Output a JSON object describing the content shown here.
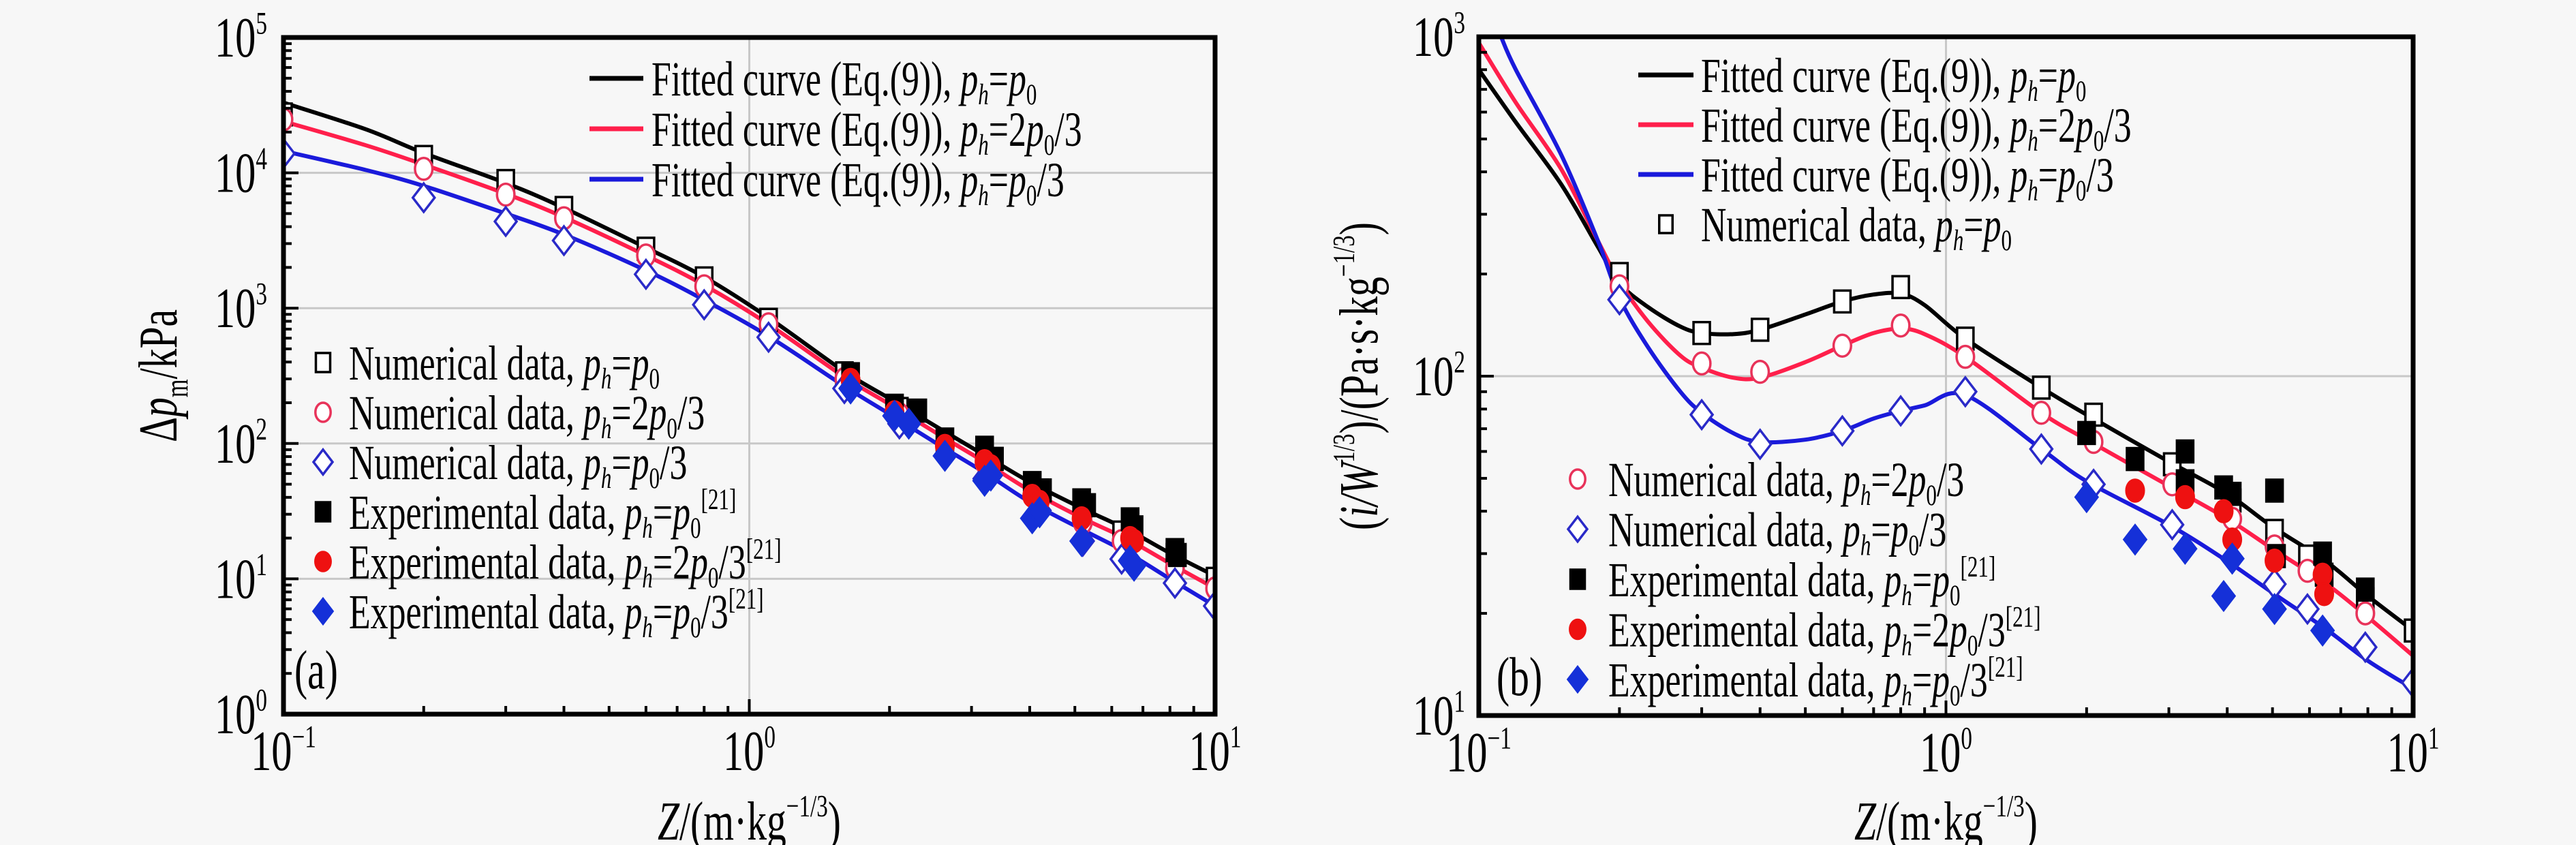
{
  "chart_data": [
    {
      "panel": "(a)",
      "type": "scatter",
      "title": "",
      "xlabel": "Z/(m·kg^-1/3)",
      "ylabel": "Δp_m/kPa",
      "xscale": "log",
      "yscale": "log",
      "xlim": [
        0.1,
        10
      ],
      "ylim": [
        1,
        100000
      ],
      "grid": true,
      "x_tick_labels": [
        {
          "base": "10",
          "exp": "−1"
        },
        {
          "base": "10",
          "exp": "0"
        },
        {
          "base": "10",
          "exp": "1"
        }
      ],
      "y_tick_labels": [
        {
          "base": "10",
          "exp": "0"
        },
        {
          "base": "10",
          "exp": "1"
        },
        {
          "base": "10",
          "exp": "2"
        },
        {
          "base": "10",
          "exp": "3"
        },
        {
          "base": "10",
          "exp": "4"
        },
        {
          "base": "10",
          "exp": "5"
        }
      ],
      "legend_placement": [
        "top-right",
        "center-left"
      ],
      "series": [
        {
          "name": "Fitted curve (Eq.(9)), p_h=p_0",
          "kind": "line",
          "color": "#000000",
          "x": [
            0.1,
            0.15,
            0.2,
            0.3,
            0.4,
            0.6,
            0.8,
            1.1,
            1.6,
            2.0,
            2.6,
            3.2,
            4.0,
            5.2,
            6.5,
            8.0,
            10
          ],
          "y": [
            33000,
            21000,
            14000,
            8400,
            5500,
            2800,
            1700,
            850,
            340,
            215,
            125,
            82,
            52,
            33,
            23,
            15.5,
            10.5
          ]
        },
        {
          "name": "Fitted curve (Eq.(9)), p_h=2p_0/3",
          "kind": "line",
          "color": "#ff1f4b",
          "x": [
            0.1,
            0.15,
            0.2,
            0.3,
            0.4,
            0.6,
            0.8,
            1.1,
            1.6,
            2.0,
            2.6,
            3.2,
            4.0,
            5.2,
            6.5,
            8.0,
            10
          ],
          "y": [
            24000,
            16000,
            11500,
            7000,
            4700,
            2450,
            1480,
            760,
            310,
            195,
            112,
            73,
            45,
            28,
            19.5,
            13,
            8.5
          ]
        },
        {
          "name": "Fitted curve (Eq.(9)), p_h=p_0/3",
          "kind": "line",
          "color": "#1a1adb",
          "x": [
            0.1,
            0.15,
            0.2,
            0.3,
            0.4,
            0.6,
            0.8,
            1.1,
            1.6,
            2.0,
            2.6,
            3.2,
            4.0,
            5.2,
            6.5,
            8.0,
            10
          ],
          "y": [
            14500,
            10500,
            8000,
            5000,
            3500,
            1900,
            1150,
            620,
            265,
            165,
            94,
            61,
            37,
            23,
            15.5,
            10,
            6.3
          ]
        },
        {
          "name": "Numerical data, p_h=p_0",
          "kind": "open-square",
          "color": "#000000",
          "x": [
            0.1,
            0.2,
            0.3,
            0.4,
            0.6,
            0.8,
            1.1,
            1.6,
            2.1,
            3.2,
            4.2,
            5.2,
            6.3,
            8.2,
            10
          ],
          "y": [
            27000,
            13100,
            8700,
            5500,
            2750,
            1660,
            820,
            330,
            180,
            80,
            45,
            30,
            22,
            15,
            10
          ]
        },
        {
          "name": "Numerical data, p_h=2p_0/3",
          "kind": "open-circle",
          "color": "#e8335a",
          "x": [
            0.1,
            0.2,
            0.3,
            0.4,
            0.6,
            0.8,
            1.1,
            1.6,
            2.1,
            3.2,
            4.2,
            5.2,
            6.3,
            8.2,
            10
          ],
          "y": [
            24800,
            10700,
            6900,
            4620,
            2450,
            1450,
            760,
            300,
            165,
            72,
            40,
            26,
            19,
            12,
            8.5
          ]
        },
        {
          "name": "Numerical data, p_h=p_0/3",
          "kind": "open-diamond",
          "color": "#2a2ac8",
          "x": [
            0.1,
            0.2,
            0.3,
            0.4,
            0.6,
            0.8,
            1.1,
            1.6,
            2.1,
            3.2,
            4.2,
            5.2,
            6.3,
            8.2,
            10
          ],
          "y": [
            13900,
            6550,
            4370,
            3160,
            1780,
            1060,
            610,
            255,
            140,
            55,
            32,
            19,
            14,
            9.3,
            6.3
          ]
        },
        {
          "name": "Experimental data, p_h=p_0^[21]",
          "kind": "filled-square",
          "color": "#000000",
          "x": [
            1.65,
            2.05,
            2.3,
            2.63,
            3.2,
            3.36,
            4.05,
            4.26,
            5.17,
            5.3,
            6.57,
            6.7,
            8.2,
            8.3
          ],
          "y": [
            325,
            190,
            175,
            107,
            93,
            77,
            51,
            45,
            38,
            35,
            27.5,
            24,
            16.3,
            15
          ]
        },
        {
          "name": "Experimental data, p_h=2p_0/3^[21]",
          "kind": "filled-circle",
          "color": "#ee1111",
          "x": [
            1.65,
            2.05,
            2.63,
            3.2,
            3.3,
            4.05,
            4.2,
            5.17,
            6.57,
            6.7
          ],
          "y": [
            295,
            170,
            96,
            74,
            68,
            41,
            37,
            28,
            20,
            19
          ]
        },
        {
          "name": "Experimental data, p_h=p_0/3^[21]",
          "kind": "filled-diamond",
          "color": "#1530d8",
          "x": [
            1.65,
            2.05,
            2.2,
            2.63,
            3.2,
            3.3,
            4.05,
            4.2,
            5.17,
            6.57,
            6.7
          ],
          "y": [
            255,
            160,
            140,
            81,
            53,
            58,
            28,
            31,
            19,
            13.6,
            12.5
          ]
        }
      ]
    },
    {
      "panel": "(b)",
      "type": "scatter",
      "title": "",
      "xlabel": "Z/(m·kg^-1/3)",
      "ylabel": "(i/W^1/3)/(Pa·s·kg^-1/3)",
      "xscale": "log",
      "yscale": "log",
      "xlim": [
        0.1,
        10
      ],
      "ylim": [
        10,
        1000
      ],
      "grid": true,
      "x_tick_labels": [
        {
          "base": "10",
          "exp": "−1"
        },
        {
          "base": "10",
          "exp": "0"
        },
        {
          "base": "10",
          "exp": "1"
        }
      ],
      "y_tick_labels": [
        {
          "base": "10",
          "exp": "1"
        },
        {
          "base": "10",
          "exp": "2"
        },
        {
          "base": "10",
          "exp": "3"
        }
      ],
      "legend_placement": [
        "top-right",
        "bottom-left"
      ],
      "series": [
        {
          "name": "Fitted curve (Eq.(9)), p_h=p_0",
          "kind": "line",
          "color": "#000000",
          "x": [
            0.1,
            0.12,
            0.15,
            0.18,
            0.2,
            0.23,
            0.27,
            0.3,
            0.35,
            0.4,
            0.5,
            0.6,
            0.7,
            0.8,
            0.9,
            1.1,
            1.6,
            2.0,
            3.0,
            4.0,
            5.0,
            6.5,
            8.0,
            10
          ],
          "y": [
            800,
            560,
            368,
            240,
            188,
            160,
            140,
            134,
            133,
            137,
            152,
            166,
            174,
            175,
            162,
            129,
            92.5,
            77,
            56,
            45,
            36,
            28.5,
            22.5,
            17.8
          ]
        },
        {
          "name": "Fitted curve (Eq.(9)), p_h=2p_0/3",
          "kind": "line",
          "color": "#ff1f4b",
          "x": [
            0.1,
            0.12,
            0.15,
            0.18,
            0.2,
            0.23,
            0.27,
            0.3,
            0.35,
            0.4,
            0.5,
            0.6,
            0.7,
            0.8,
            0.9,
            1.1,
            1.6,
            2.0,
            3.0,
            4.0,
            5.0,
            6.5,
            8.0,
            10
          ],
          "y": [
            960,
            640,
            408,
            250,
            190,
            145,
            115,
            106,
            99,
            99,
            110,
            123,
            134,
            138,
            133,
            114,
            78,
            65,
            47.5,
            38,
            31,
            24.5,
            19.5,
            15
          ]
        },
        {
          "name": "Fitted curve (Eq.(9)), p_h=p_0/3",
          "kind": "line",
          "color": "#1a1adb",
          "x": [
            0.1116,
            0.12,
            0.15,
            0.18,
            0.2,
            0.23,
            0.27,
            0.3,
            0.35,
            0.4,
            0.5,
            0.6,
            0.7,
            0.8,
            0.9,
            1.1,
            1.6,
            2.0,
            3.0,
            4.0,
            5.0,
            6.5,
            8.0,
            10
          ],
          "y": [
            1000,
            800,
            450,
            250,
            170,
            122,
            90,
            78,
            68,
            64,
            65,
            69,
            75,
            79,
            82,
            88,
            61,
            49,
            36.5,
            28.5,
            23,
            18,
            14.5,
            12
          ]
        },
        {
          "name": "Numerical data, p_h=p_0",
          "kind": "open-square",
          "color": "#000000",
          "x": [
            0.2,
            0.3,
            0.4,
            0.6,
            0.8,
            1.1,
            1.6,
            2.07,
            3.05,
            4.1,
            5.05,
            5.94,
            7.9,
            10
          ],
          "y": [
            200,
            134,
            137,
            166,
            183,
            129,
            92.5,
            77,
            55,
            43,
            35,
            29.4,
            22,
            17.8
          ]
        },
        {
          "name": "Numerical data, p_h=2p_0/3",
          "kind": "open-circle",
          "color": "#e8335a",
          "x": [
            0.2,
            0.3,
            0.4,
            0.6,
            0.8,
            1.1,
            1.6,
            2.07,
            3.05,
            4.1,
            5.05,
            5.94,
            7.9
          ],
          "y": [
            184,
            109,
            103,
            123,
            141,
            114,
            78,
            64,
            48,
            38,
            31.5,
            26.7,
            20
          ]
        },
        {
          "name": "Numerical data, p_h=p_0/3",
          "kind": "open-diamond",
          "color": "#2a2ac8",
          "x": [
            0.2,
            0.3,
            0.4,
            0.6,
            0.8,
            1.1,
            1.6,
            2.07,
            3.05,
            4.1,
            5.05,
            5.94,
            7.9,
            10
          ],
          "y": [
            168,
            77,
            63,
            69,
            79,
            90,
            61,
            48,
            36.5,
            29,
            24.4,
            20.6,
            15.9,
            12.5
          ]
        },
        {
          "name": "Experimental data, p_h=p_0^[21]",
          "kind": "filled-square",
          "color": "#000000",
          "x": [
            2.0,
            2.54,
            3.25,
            3.25,
            3.93,
            4.1,
            5.05,
            5.1,
            6.4,
            6.45,
            7.9
          ],
          "y": [
            68,
            57,
            60,
            49,
            47,
            45,
            46,
            29.5,
            30,
            26,
            23.5
          ]
        },
        {
          "name": "Experimental data, p_h=2p_0/3^[21]",
          "kind": "filled-circle",
          "color": "#ee1111",
          "x": [
            2.54,
            3.25,
            3.93,
            4.1,
            5.05,
            6.4,
            6.45
          ],
          "y": [
            46,
            44,
            40,
            33,
            28.6,
            26,
            22.8
          ]
        },
        {
          "name": "Experimental data, p_h=p_0/3^[21]",
          "kind": "filled-diamond",
          "color": "#1530d8",
          "x": [
            2.0,
            2.54,
            3.25,
            3.93,
            4.1,
            5.05,
            6.4
          ],
          "y": [
            44,
            33,
            31,
            22.5,
            29,
            20.6,
            17.8
          ]
        }
      ]
    }
  ],
  "panels": [
    {
      "id": "a",
      "panel_label": "(a)",
      "ylabel": {
        "main": "Δ",
        "p": "p",
        "sub": "m",
        "rest": "/kPa"
      },
      "xlabel": {
        "z": "Z",
        "rest": "/(m·kg",
        "sup": "−1/3",
        "close": ")"
      },
      "legend_top": [
        {
          "text": "Fitted curve (Eq.(9)), ",
          "rhs": "p_0",
          "rhs_type": "p0",
          "color": "#000000"
        },
        {
          "text": "Fitted curve (Eq.(9)), ",
          "rhs": "2p_0/3",
          "rhs_type": "2p0/3",
          "color": "#ff1f4b"
        },
        {
          "text": "Fitted curve (Eq.(9)), ",
          "rhs": "p_0/3",
          "rhs_type": "p0/3",
          "color": "#1a1adb"
        }
      ],
      "legend_bottom": [
        {
          "text": "Numerical data, ",
          "rhs_type": "p0",
          "ref": "",
          "marker": "open-square",
          "color": "#000000"
        },
        {
          "text": "Numerical data, ",
          "rhs_type": "2p0/3",
          "ref": "",
          "marker": "open-circle",
          "color": "#e8335a"
        },
        {
          "text": "Numerical data, ",
          "rhs_type": "p0/3",
          "ref": "",
          "marker": "open-diamond",
          "color": "#2a2ac8"
        },
        {
          "text": "Experimental data, ",
          "rhs_type": "p0",
          "ref": "[21]",
          "marker": "filled-square",
          "color": "#000000"
        },
        {
          "text": "Experimental data, ",
          "rhs_type": "2p0/3",
          "ref": "[21]",
          "marker": "filled-circle",
          "color": "#ee1111"
        },
        {
          "text": "Experimental data, ",
          "rhs_type": "p0/3",
          "ref": "[21]",
          "marker": "filled-diamond",
          "color": "#1530d8"
        }
      ]
    },
    {
      "id": "b",
      "panel_label": "(b)",
      "ylabel": {
        "text": "(i/W",
        "sup1": "1/3",
        "rest": ")/(Pa·s·kg",
        "sup2": "−1/3",
        "close": ")"
      },
      "xlabel": {
        "z": "Z",
        "rest": "/(m·kg",
        "sup": "−1/3",
        "close": ")"
      },
      "legend_top": [
        {
          "text": "Fitted curve (Eq.(9)), ",
          "rhs_type": "p0",
          "color": "#000000",
          "marker": "line"
        },
        {
          "text": "Fitted curve (Eq.(9)), ",
          "rhs_type": "2p0/3",
          "color": "#ff1f4b",
          "marker": "line"
        },
        {
          "text": "Fitted curve (Eq.(9)), ",
          "rhs_type": "p0/3",
          "color": "#1a1adb",
          "marker": "line"
        },
        {
          "text": "Numerical data, ",
          "rhs_type": "p0",
          "ref": "",
          "color": "#000000",
          "marker": "open-square"
        }
      ],
      "legend_bottom": [
        {
          "text": "Numerical data, ",
          "rhs_type": "2p0/3",
          "ref": "",
          "marker": "open-circle",
          "color": "#e8335a"
        },
        {
          "text": "Numerical data, ",
          "rhs_type": "p0/3",
          "ref": "",
          "marker": "open-diamond",
          "color": "#2a2ac8"
        },
        {
          "text": "Experimental data, ",
          "rhs_type": "p0",
          "ref": "[21]",
          "marker": "filled-square",
          "color": "#000000"
        },
        {
          "text": "Experimental data, ",
          "rhs_type": "2p0/3",
          "ref": "[21]",
          "marker": "filled-circle",
          "color": "#ee1111"
        },
        {
          "text": "Experimental data, ",
          "rhs_type": "p0/3",
          "ref": "[21]",
          "marker": "filled-diamond",
          "color": "#1530d8"
        }
      ]
    }
  ]
}
